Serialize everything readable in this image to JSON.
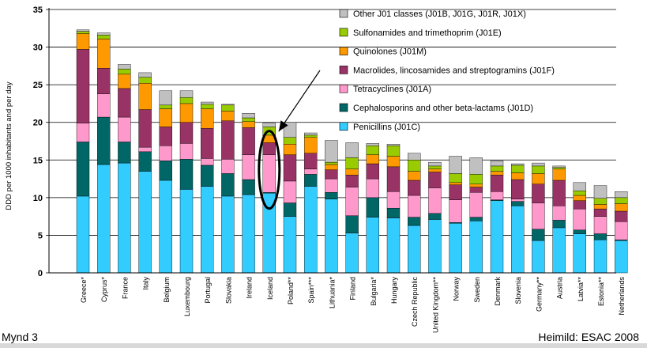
{
  "caption_left": "Mynd 3",
  "caption_right": "Heimild: ESAC 2008",
  "chart_data": {
    "type": "bar",
    "stacked": true,
    "ylabel": "DDD per 1000 inhabitants and per day",
    "xlabel": "",
    "title": "",
    "ylim": [
      0,
      35
    ],
    "yticks": [
      0,
      5,
      10,
      15,
      20,
      25,
      30,
      35
    ],
    "grid": "horizontal",
    "legend_position": "top-right",
    "highlight": {
      "category": "Iceland",
      "shape": "ellipse-with-arrow"
    },
    "categories": [
      "Greece*",
      "Cyprus*",
      "France",
      "Italy",
      "Belgium",
      "Luxembourg",
      "Portugal",
      "Slovakia",
      "Ireland",
      "Iceland",
      "Poland**",
      "Spain***",
      "Lithuania*",
      "Finland",
      "Bulgaria*",
      "Hungary",
      "Czech Republic",
      "United Kingdom**",
      "Norway",
      "Sweden",
      "Denmark",
      "Slovenia",
      "Germany**",
      "Austria",
      "Latvia**",
      "Estonia**",
      "Netherlands"
    ],
    "series": [
      {
        "name": "Penicillins (J01C)",
        "color": "#33ccff",
        "values": [
          10.2,
          14.4,
          14.6,
          13.5,
          12.3,
          11.1,
          11.5,
          10.2,
          10.4,
          10.6,
          7.5,
          11.5,
          9.8,
          5.3,
          7.4,
          7.3,
          6.3,
          7.1,
          6.6,
          6.9,
          9.6,
          8.9,
          4.3,
          6.0,
          5.2,
          4.4,
          4.3
        ]
      },
      {
        "name": "Cephalosporins and other beta-lactams (J01D)",
        "color": "#006666",
        "values": [
          7.2,
          6.3,
          2.8,
          2.6,
          2.6,
          4.0,
          2.8,
          3.0,
          2.0,
          0.1,
          1.8,
          1.6,
          0.9,
          2.3,
          2.6,
          1.3,
          1.1,
          0.8,
          0.1,
          0.5,
          0.1,
          0.6,
          1.5,
          1.0,
          0.5,
          0.8,
          0.1
        ]
      },
      {
        "name": "Tetracyclines (J01A)",
        "color": "#ff99cc",
        "values": [
          2.5,
          3.1,
          3.3,
          0.6,
          2.0,
          2.1,
          0.9,
          1.9,
          3.3,
          5.0,
          2.9,
          0.7,
          1.8,
          3.8,
          2.5,
          2.2,
          2.9,
          3.4,
          3.0,
          3.3,
          1.1,
          0.3,
          3.5,
          1.9,
          2.8,
          2.3,
          2.4
        ]
      },
      {
        "name": "Macrolides, lincosamides and streptogramins (J01F)",
        "color": "#993366",
        "values": [
          9.8,
          3.4,
          3.8,
          5.0,
          2.5,
          2.8,
          4.0,
          5.1,
          3.6,
          1.6,
          3.5,
          2.1,
          1.2,
          1.6,
          2.0,
          3.3,
          2.0,
          2.1,
          2.0,
          0.7,
          2.2,
          2.6,
          2.5,
          3.4,
          1.1,
          1.0,
          1.4
        ]
      },
      {
        "name": "Quinolones (J01M)",
        "color": "#ff9900",
        "values": [
          2.1,
          3.9,
          1.9,
          3.5,
          2.4,
          2.5,
          2.6,
          1.3,
          0.8,
          1.0,
          1.4,
          2.1,
          0.7,
          0.8,
          1.2,
          1.4,
          1.2,
          0.4,
          0.3,
          0.4,
          0.5,
          0.9,
          1.4,
          1.5,
          0.7,
          0.6,
          1.0
        ]
      },
      {
        "name": "Sulfonamides and trimethoprim (J01E)",
        "color": "#99cc00",
        "values": [
          0.3,
          0.5,
          0.7,
          0.8,
          0.5,
          0.8,
          0.6,
          0.8,
          0.5,
          1.1,
          0.9,
          0.3,
          0.3,
          1.5,
          1.2,
          1.4,
          1.5,
          0.4,
          1.2,
          1.3,
          0.7,
          1.0,
          1.0,
          0.2,
          0.6,
          0.8,
          0.8
        ]
      },
      {
        "name": "Other J01 classes (J01B, J01G, J01R, J01X)",
        "color": "#c0c0c0",
        "values": [
          0.2,
          0.3,
          0.6,
          0.6,
          1.9,
          0.9,
          0.3,
          0.1,
          0.6,
          0.5,
          2.0,
          0.3,
          2.9,
          2.0,
          0.3,
          0.2,
          0.9,
          0.5,
          2.3,
          2.2,
          0.7,
          0.2,
          0.4,
          0.2,
          1.1,
          1.7,
          0.8
        ]
      }
    ]
  }
}
